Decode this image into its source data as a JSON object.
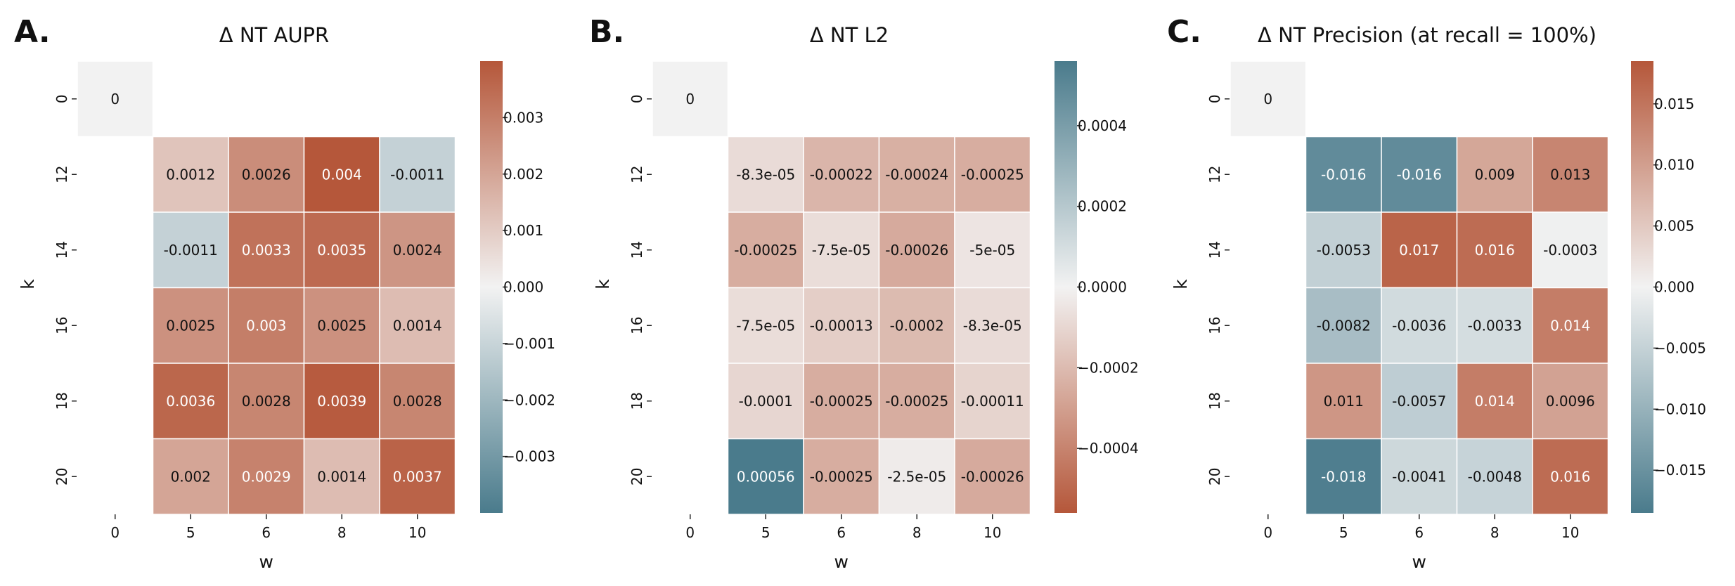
{
  "chart_data": [
    {
      "type": "heatmap",
      "panel_label": "A.",
      "title": "Δ  NT AUPR",
      "xlabel": "w",
      "ylabel": "k",
      "x_categories": [
        "0",
        "5",
        "6",
        "8",
        "10"
      ],
      "y_categories": [
        "0",
        "12",
        "14",
        "16",
        "18",
        "20"
      ],
      "cells": [
        {
          "k": "0",
          "w": "0",
          "value": 0,
          "label": "0"
        },
        {
          "k": "12",
          "w": "5",
          "value": 0.0012,
          "label": "0.0012"
        },
        {
          "k": "12",
          "w": "6",
          "value": 0.0026,
          "label": "0.0026"
        },
        {
          "k": "12",
          "w": "8",
          "value": 0.004,
          "label": "0.004"
        },
        {
          "k": "12",
          "w": "10",
          "value": -0.0011,
          "label": "-0.0011"
        },
        {
          "k": "14",
          "w": "5",
          "value": -0.0011,
          "label": "-0.0011"
        },
        {
          "k": "14",
          "w": "6",
          "value": 0.0033,
          "label": "0.0033"
        },
        {
          "k": "14",
          "w": "8",
          "value": 0.0035,
          "label": "0.0035"
        },
        {
          "k": "14",
          "w": "10",
          "value": 0.0024,
          "label": "0.0024"
        },
        {
          "k": "16",
          "w": "5",
          "value": 0.0025,
          "label": "0.0025"
        },
        {
          "k": "16",
          "w": "6",
          "value": 0.003,
          "label": "0.003"
        },
        {
          "k": "16",
          "w": "8",
          "value": 0.0025,
          "label": "0.0025"
        },
        {
          "k": "16",
          "w": "10",
          "value": 0.0014,
          "label": "0.0014"
        },
        {
          "k": "18",
          "w": "5",
          "value": 0.0036,
          "label": "0.0036"
        },
        {
          "k": "18",
          "w": "6",
          "value": 0.0028,
          "label": "0.0028"
        },
        {
          "k": "18",
          "w": "8",
          "value": 0.0039,
          "label": "0.0039"
        },
        {
          "k": "18",
          "w": "10",
          "value": 0.0028,
          "label": "0.0028"
        },
        {
          "k": "20",
          "w": "5",
          "value": 0.002,
          "label": "0.002"
        },
        {
          "k": "20",
          "w": "6",
          "value": 0.0029,
          "label": "0.0029"
        },
        {
          "k": "20",
          "w": "8",
          "value": 0.0014,
          "label": "0.0014"
        },
        {
          "k": "20",
          "w": "10",
          "value": 0.0037,
          "label": "0.0037"
        }
      ],
      "colorbar": {
        "min": -0.004,
        "max": 0.004,
        "positive_color": "#b5573a",
        "negative_color": "#4a7b8c",
        "center_color": "#f2f2f2",
        "ticks": [
          0.003,
          0.002,
          0.001,
          0.0,
          -0.001,
          -0.002,
          -0.003
        ],
        "tick_labels": [
          "0.003",
          "0.002",
          "0.001",
          "0.000",
          "−0.001",
          "−0.002",
          "−0.003"
        ]
      }
    },
    {
      "type": "heatmap",
      "panel_label": "B.",
      "title": "Δ  NT L2",
      "xlabel": "w",
      "ylabel": "k",
      "x_categories": [
        "0",
        "5",
        "6",
        "8",
        "10"
      ],
      "y_categories": [
        "0",
        "12",
        "14",
        "16",
        "18",
        "20"
      ],
      "cells": [
        {
          "k": "0",
          "w": "0",
          "value": 0,
          "label": "0"
        },
        {
          "k": "12",
          "w": "5",
          "value": -8.3e-05,
          "label": "-8.3e-05"
        },
        {
          "k": "12",
          "w": "6",
          "value": -0.00022,
          "label": "-0.00022"
        },
        {
          "k": "12",
          "w": "8",
          "value": -0.00024,
          "label": "-0.00024"
        },
        {
          "k": "12",
          "w": "10",
          "value": -0.00025,
          "label": "-0.00025"
        },
        {
          "k": "14",
          "w": "5",
          "value": -0.00025,
          "label": "-0.00025"
        },
        {
          "k": "14",
          "w": "6",
          "value": -7.5e-05,
          "label": "-7.5e-05"
        },
        {
          "k": "14",
          "w": "8",
          "value": -0.00026,
          "label": "-0.00026"
        },
        {
          "k": "14",
          "w": "10",
          "value": -5e-05,
          "label": "-5e-05"
        },
        {
          "k": "16",
          "w": "5",
          "value": -7.5e-05,
          "label": "-7.5e-05"
        },
        {
          "k": "16",
          "w": "6",
          "value": -0.00013,
          "label": "-0.00013"
        },
        {
          "k": "16",
          "w": "8",
          "value": -0.0002,
          "label": "-0.0002"
        },
        {
          "k": "16",
          "w": "10",
          "value": -8.3e-05,
          "label": "-8.3e-05"
        },
        {
          "k": "18",
          "w": "5",
          "value": -0.0001,
          "label": "-0.0001"
        },
        {
          "k": "18",
          "w": "6",
          "value": -0.00025,
          "label": "-0.00025"
        },
        {
          "k": "18",
          "w": "8",
          "value": -0.00025,
          "label": "-0.00025"
        },
        {
          "k": "18",
          "w": "10",
          "value": -0.00011,
          "label": "-0.00011"
        },
        {
          "k": "20",
          "w": "5",
          "value": 0.00056,
          "label": "0.00056"
        },
        {
          "k": "20",
          "w": "6",
          "value": -0.00025,
          "label": "-0.00025"
        },
        {
          "k": "20",
          "w": "8",
          "value": -2.5e-05,
          "label": "-2.5e-05"
        },
        {
          "k": "20",
          "w": "10",
          "value": -0.00026,
          "label": "-0.00026"
        }
      ],
      "colorbar": {
        "min": -0.00056,
        "max": 0.00056,
        "positive_color": "#4a7b8c",
        "negative_color": "#b5573a",
        "center_color": "#f2f2f2",
        "ticks": [
          0.0004,
          0.0002,
          0.0,
          -0.0002,
          -0.0004
        ],
        "tick_labels": [
          "0.0004",
          "0.0002",
          "0.0000",
          "−0.0002",
          "−0.0004"
        ]
      }
    },
    {
      "type": "heatmap",
      "panel_label": "C.",
      "title": "Δ  NT Precision (at recall = 100%)",
      "xlabel": "w",
      "ylabel": "k",
      "x_categories": [
        "0",
        "5",
        "6",
        "8",
        "10"
      ],
      "y_categories": [
        "0",
        "12",
        "14",
        "16",
        "18",
        "20"
      ],
      "cells": [
        {
          "k": "0",
          "w": "0",
          "value": 0,
          "label": "0"
        },
        {
          "k": "12",
          "w": "5",
          "value": -0.016,
          "label": "-0.016"
        },
        {
          "k": "12",
          "w": "6",
          "value": -0.016,
          "label": "-0.016"
        },
        {
          "k": "12",
          "w": "8",
          "value": 0.009,
          "label": "0.009"
        },
        {
          "k": "12",
          "w": "10",
          "value": 0.013,
          "label": "0.013"
        },
        {
          "k": "14",
          "w": "5",
          "value": -0.0053,
          "label": "-0.0053"
        },
        {
          "k": "14",
          "w": "6",
          "value": 0.017,
          "label": "0.017"
        },
        {
          "k": "14",
          "w": "8",
          "value": 0.016,
          "label": "0.016"
        },
        {
          "k": "14",
          "w": "10",
          "value": -0.0003,
          "label": "-0.0003"
        },
        {
          "k": "16",
          "w": "5",
          "value": -0.0082,
          "label": "-0.0082"
        },
        {
          "k": "16",
          "w": "6",
          "value": -0.0036,
          "label": "-0.0036"
        },
        {
          "k": "16",
          "w": "8",
          "value": -0.0033,
          "label": "-0.0033"
        },
        {
          "k": "16",
          "w": "10",
          "value": 0.014,
          "label": "0.014"
        },
        {
          "k": "18",
          "w": "5",
          "value": 0.011,
          "label": "0.011"
        },
        {
          "k": "18",
          "w": "6",
          "value": -0.0057,
          "label": "-0.0057"
        },
        {
          "k": "18",
          "w": "8",
          "value": 0.014,
          "label": "0.014"
        },
        {
          "k": "18",
          "w": "10",
          "value": 0.0096,
          "label": "0.0096"
        },
        {
          "k": "20",
          "w": "5",
          "value": -0.018,
          "label": "-0.018"
        },
        {
          "k": "20",
          "w": "6",
          "value": -0.0041,
          "label": "-0.0041"
        },
        {
          "k": "20",
          "w": "8",
          "value": -0.0048,
          "label": "-0.0048"
        },
        {
          "k": "20",
          "w": "10",
          "value": 0.016,
          "label": "0.016"
        }
      ],
      "colorbar": {
        "min": -0.0185,
        "max": 0.0185,
        "positive_color": "#b5573a",
        "negative_color": "#4a7b8c",
        "center_color": "#f2f2f2",
        "ticks": [
          0.015,
          0.01,
          0.005,
          0.0,
          -0.005,
          -0.01,
          -0.015
        ],
        "tick_labels": [
          "0.015",
          "0.010",
          "0.005",
          "0.000",
          "−0.005",
          "−0.010",
          "−0.015"
        ]
      }
    }
  ]
}
